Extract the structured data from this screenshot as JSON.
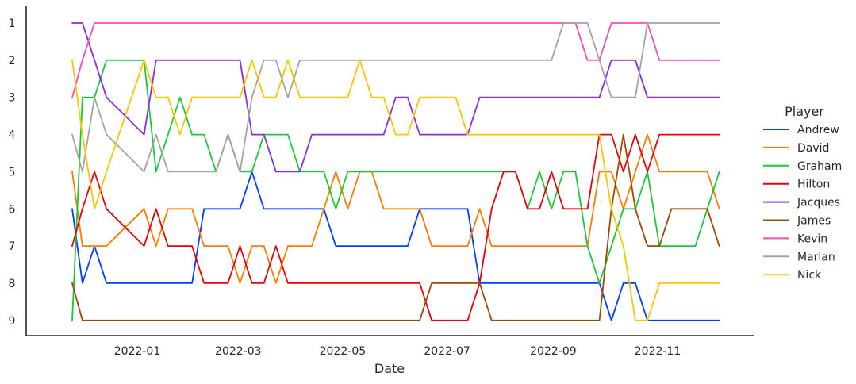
{
  "chart_data": {
    "type": "line",
    "xlabel": "Date",
    "ylabel": "",
    "x_range": [
      "2021-11-20",
      "2022-12-16"
    ],
    "y_range": [
      0.6,
      9.4
    ],
    "y_inverted": true,
    "grid": false,
    "legend_placement": "right",
    "legend_title": "Player",
    "x_ticks": [
      {
        "date": "2022-01-01",
        "label": "2022-01"
      },
      {
        "date": "2022-03-01",
        "label": "2022-03"
      },
      {
        "date": "2022-05-01",
        "label": "2022-05"
      },
      {
        "date": "2022-07-01",
        "label": "2022-07"
      },
      {
        "date": "2022-09-01",
        "label": "2022-09"
      },
      {
        "date": "2022-11-01",
        "label": "2022-11"
      }
    ],
    "y_ticks": [
      "1",
      "2",
      "3",
      "4",
      "5",
      "6",
      "7",
      "8",
      "9"
    ],
    "x": [
      "2021-11-24",
      "2021-11-30",
      "2021-12-07",
      "2021-12-14",
      "2022-01-05",
      "2022-01-12",
      "2022-01-19",
      "2022-01-26",
      "2022-02-02",
      "2022-02-09",
      "2022-02-16",
      "2022-02-23",
      "2022-03-02",
      "2022-03-09",
      "2022-03-16",
      "2022-03-23",
      "2022-03-30",
      "2022-04-06",
      "2022-04-13",
      "2022-04-20",
      "2022-04-27",
      "2022-05-04",
      "2022-05-11",
      "2022-05-18",
      "2022-05-25",
      "2022-06-01",
      "2022-06-08",
      "2022-06-15",
      "2022-06-22",
      "2022-06-29",
      "2022-07-06",
      "2022-07-13",
      "2022-07-20",
      "2022-07-27",
      "2022-08-03",
      "2022-08-10",
      "2022-08-17",
      "2022-08-24",
      "2022-08-31",
      "2022-09-07",
      "2022-09-14",
      "2022-09-21",
      "2022-09-28",
      "2022-10-05",
      "2022-10-12",
      "2022-10-19",
      "2022-10-26",
      "2022-11-02",
      "2022-11-09",
      "2022-11-16",
      "2022-11-23",
      "2022-11-30",
      "2022-12-07"
    ],
    "series": [
      {
        "name": "Andrew",
        "color": "#023eff",
        "values": [
          6,
          8,
          7,
          8,
          8,
          8,
          8,
          8,
          8,
          6,
          6,
          6,
          6,
          5,
          6,
          6,
          6,
          6,
          6,
          6,
          7,
          7,
          7,
          7,
          7,
          7,
          7,
          6,
          6,
          6,
          6,
          6,
          8,
          8,
          8,
          8,
          8,
          8,
          8,
          8,
          8,
          8,
          8,
          9,
          8,
          8,
          9,
          9,
          9,
          9,
          9,
          9,
          9
        ]
      },
      {
        "name": "David",
        "color": "#ff7c00",
        "values": [
          5,
          7,
          7,
          7,
          6,
          7,
          6,
          6,
          6,
          7,
          7,
          7,
          8,
          7,
          7,
          8,
          7,
          7,
          7,
          6,
          5,
          6,
          5,
          5,
          6,
          6,
          6,
          6,
          7,
          7,
          7,
          7,
          6,
          7,
          7,
          7,
          7,
          7,
          7,
          7,
          7,
          7,
          5,
          5,
          6,
          5,
          4,
          5,
          5,
          5,
          5,
          5,
          6
        ]
      },
      {
        "name": "Graham",
        "color": "#1ac938",
        "values": [
          9,
          3,
          3,
          2,
          2,
          5,
          4,
          3,
          4,
          4,
          5,
          4,
          5,
          5,
          4,
          4,
          4,
          5,
          5,
          5,
          6,
          5,
          5,
          5,
          5,
          5,
          5,
          5,
          5,
          5,
          5,
          5,
          5,
          5,
          5,
          5,
          6,
          5,
          6,
          5,
          5,
          7,
          8,
          7,
          6,
          6,
          5,
          7,
          7,
          7,
          7,
          6,
          5
        ]
      },
      {
        "name": "Hilton",
        "color": "#e8000b",
        "values": [
          7,
          6,
          5,
          6,
          7,
          6,
          7,
          7,
          7,
          8,
          8,
          8,
          7,
          8,
          8,
          7,
          8,
          8,
          8,
          8,
          8,
          8,
          8,
          8,
          8,
          8,
          8,
          8,
          9,
          9,
          9,
          9,
          8,
          6,
          5,
          5,
          6,
          6,
          5,
          6,
          6,
          6,
          4,
          4,
          5,
          4,
          5,
          4,
          4,
          4,
          4,
          4,
          4
        ]
      },
      {
        "name": "Jacques",
        "color": "#8b2be2",
        "values": [
          1,
          1,
          2,
          3,
          4,
          2,
          2,
          2,
          2,
          2,
          2,
          2,
          2,
          4,
          4,
          5,
          5,
          5,
          4,
          4,
          4,
          4,
          4,
          4,
          4,
          3,
          3,
          4,
          4,
          4,
          4,
          4,
          3,
          3,
          3,
          3,
          3,
          3,
          3,
          3,
          3,
          3,
          3,
          2,
          2,
          2,
          3,
          3,
          3,
          3,
          3,
          3,
          3
        ]
      },
      {
        "name": "James",
        "color": "#9f4800",
        "values": [
          8,
          9,
          9,
          9,
          9,
          9,
          9,
          9,
          9,
          9,
          9,
          9,
          9,
          9,
          9,
          9,
          9,
          9,
          9,
          9,
          9,
          9,
          9,
          9,
          9,
          9,
          9,
          9,
          8,
          8,
          8,
          8,
          8,
          9,
          9,
          9,
          9,
          9,
          9,
          9,
          9,
          9,
          9,
          6,
          4,
          6,
          7,
          7,
          6,
          6,
          6,
          6,
          7
        ]
      },
      {
        "name": "Kevin",
        "color": "#f14cc1",
        "values": [
          3,
          2,
          1,
          1,
          1,
          1,
          1,
          1,
          1,
          1,
          1,
          1,
          1,
          1,
          1,
          1,
          1,
          1,
          1,
          1,
          1,
          1,
          1,
          1,
          1,
          1,
          1,
          1,
          1,
          1,
          1,
          1,
          1,
          1,
          1,
          1,
          1,
          1,
          1,
          1,
          1,
          2,
          2,
          1,
          1,
          1,
          1,
          2,
          2,
          2,
          2,
          2,
          2
        ]
      },
      {
        "name": "Marlan",
        "color": "#a3a3a3",
        "values": [
          4,
          5,
          3,
          4,
          5,
          4,
          5,
          5,
          5,
          5,
          5,
          4,
          5,
          3,
          2,
          2,
          3,
          2,
          2,
          2,
          2,
          2,
          2,
          2,
          2,
          2,
          2,
          2,
          2,
          2,
          2,
          2,
          2,
          2,
          2,
          2,
          2,
          2,
          2,
          1,
          1,
          1,
          2,
          3,
          3,
          3,
          1,
          1,
          1,
          1,
          1,
          1,
          1
        ]
      },
      {
        "name": "Nick",
        "color": "#ffc400",
        "values": [
          2,
          4,
          6,
          5,
          2,
          3,
          3,
          4,
          3,
          3,
          3,
          3,
          3,
          2,
          3,
          3,
          2,
          3,
          3,
          3,
          3,
          3,
          2,
          3,
          3,
          4,
          4,
          3,
          3,
          3,
          3,
          4,
          4,
          4,
          4,
          4,
          4,
          4,
          4,
          4,
          4,
          4,
          4,
          6,
          7,
          9,
          9,
          8,
          8,
          8,
          8,
          8,
          8
        ]
      }
    ]
  }
}
